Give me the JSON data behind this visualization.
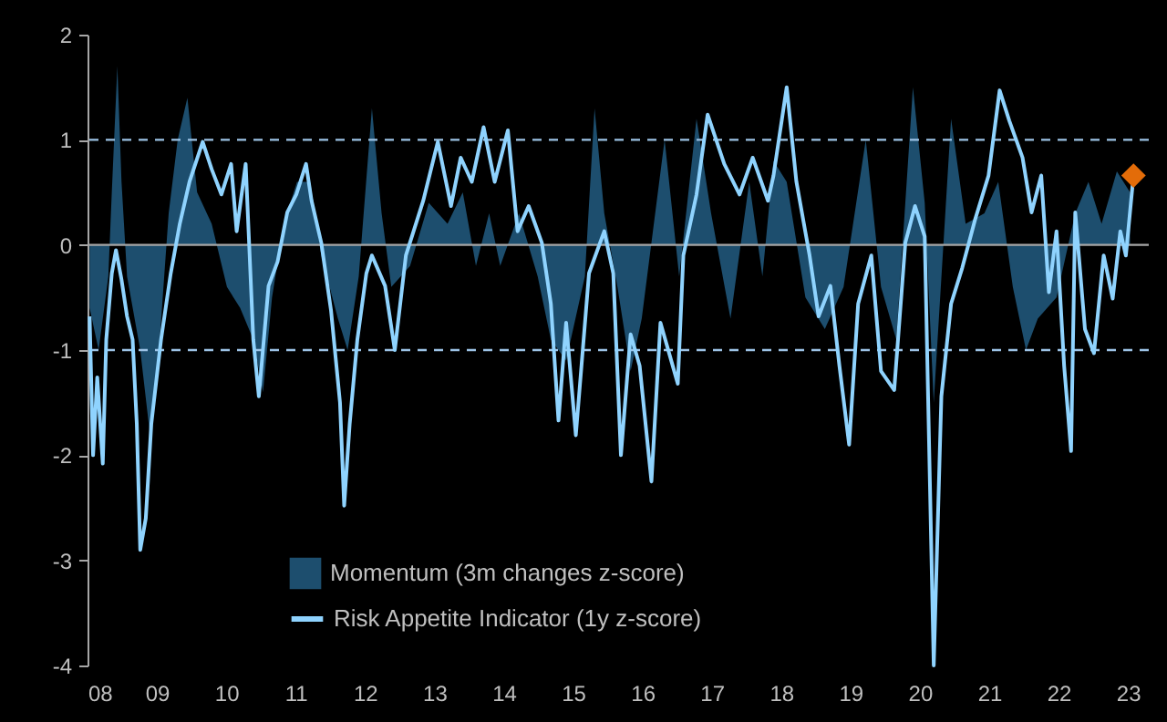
{
  "chart_data": {
    "type": "line",
    "legend": "bottom left",
    "grid": false,
    "xlim": [
      2008,
      2023.3
    ],
    "ylim": [
      -4,
      2
    ],
    "xticks": [
      {
        "value": 2008,
        "label": "08"
      },
      {
        "value": 2009,
        "label": "09"
      },
      {
        "value": 2010,
        "label": "10"
      },
      {
        "value": 2011,
        "label": "11"
      },
      {
        "value": 2012,
        "label": "12"
      },
      {
        "value": 2013,
        "label": "13"
      },
      {
        "value": 2014,
        "label": "14"
      },
      {
        "value": 2015,
        "label": "15"
      },
      {
        "value": 2016,
        "label": "16"
      },
      {
        "value": 2017,
        "label": "17"
      },
      {
        "value": 2018,
        "label": "18"
      },
      {
        "value": 2019,
        "label": "19"
      },
      {
        "value": 2020,
        "label": "20"
      },
      {
        "value": 2021,
        "label": "21"
      },
      {
        "value": 2022,
        "label": "22"
      },
      {
        "value": 2023,
        "label": "23"
      }
    ],
    "yticks": [
      -4,
      -3,
      -2,
      -1,
      0,
      1,
      2
    ],
    "ref_lines": [
      {
        "axis": "y",
        "value": 1,
        "color": "#9dc3e6",
        "line_style": "dashed"
      },
      {
        "axis": "y",
        "value": -1,
        "color": "#9dc3e6",
        "line_style": "dashed"
      },
      {
        "axis": "y",
        "value": 0,
        "color": "#a6a6a6",
        "line_style": "solid"
      }
    ],
    "series": [
      {
        "name": "Momentum (3m changes z-score)",
        "type": "area",
        "color": "#1d4e6e",
        "x": [
          2008.03,
          2008.16,
          2008.3,
          2008.35,
          2008.43,
          2008.49,
          2008.57,
          2008.76,
          2008.9,
          2009.03,
          2009.17,
          2009.3,
          2009.44,
          2009.58,
          2009.79,
          2010.01,
          2010.2,
          2010.39,
          2010.53,
          2010.66,
          2010.83,
          2011.02,
          2011.21,
          2011.37,
          2011.61,
          2011.75,
          2011.91,
          2012.1,
          2012.24,
          2012.38,
          2012.65,
          2012.92,
          2013.19,
          2013.41,
          2013.6,
          2013.79,
          2013.95,
          2014.22,
          2014.49,
          2014.68,
          2014.9,
          2015.17,
          2015.31,
          2015.45,
          2015.64,
          2015.83,
          2015.99,
          2016.32,
          2016.53,
          2016.78,
          2016.99,
          2017.27,
          2017.54,
          2017.73,
          2017.89,
          2018.08,
          2018.35,
          2018.63,
          2018.9,
          2019.22,
          2019.44,
          2019.66,
          2019.9,
          2020.07,
          2020.2,
          2020.45,
          2020.66,
          2020.93,
          2021.13,
          2021.34,
          2021.53,
          2021.7,
          2021.97,
          2022.24,
          2022.43,
          2022.62,
          2022.84,
          2023.03
        ],
        "values": [
          -0.6,
          -1.0,
          -0.3,
          0.5,
          1.7,
          0.6,
          -0.3,
          -1.0,
          -1.8,
          -1.0,
          0.3,
          1.0,
          1.4,
          0.5,
          0.2,
          -0.4,
          -0.6,
          -0.9,
          -1.4,
          -0.5,
          0.2,
          0.6,
          0.6,
          -0.1,
          -0.7,
          -1.0,
          -0.3,
          1.3,
          0.3,
          -0.4,
          -0.2,
          0.4,
          0.2,
          0.5,
          -0.2,
          0.3,
          -0.2,
          0.3,
          -0.3,
          -0.9,
          -1.1,
          -0.3,
          1.3,
          0.3,
          -0.4,
          -1.2,
          -0.7,
          1.0,
          -0.3,
          1.2,
          0.3,
          -0.7,
          0.6,
          -0.3,
          0.8,
          0.6,
          -0.5,
          -0.8,
          -0.4,
          1.0,
          -0.4,
          -0.9,
          1.5,
          0.4,
          -1.5,
          1.2,
          0.2,
          0.3,
          0.6,
          -0.4,
          -1.0,
          -0.7,
          -0.5,
          0.3,
          0.6,
          0.2,
          0.7,
          0.5
        ]
      },
      {
        "name": "Risk Appetite Indicator (1y z-score)",
        "type": "line",
        "color": "#8fd3fe",
        "x": [
          2008.03,
          2008.08,
          2008.14,
          2008.22,
          2008.27,
          2008.35,
          2008.41,
          2008.49,
          2008.57,
          2008.65,
          2008.71,
          2008.76,
          2008.84,
          2008.92,
          2009.06,
          2009.2,
          2009.33,
          2009.47,
          2009.66,
          2009.79,
          2009.93,
          2010.07,
          2010.15,
          2010.28,
          2010.39,
          2010.47,
          2010.61,
          2010.74,
          2010.88,
          2011.01,
          2011.15,
          2011.23,
          2011.37,
          2011.51,
          2011.64,
          2011.7,
          2011.78,
          2011.89,
          2012.02,
          2012.1,
          2012.29,
          2012.43,
          2012.59,
          2012.84,
          2013.05,
          2013.24,
          2013.38,
          2013.54,
          2013.71,
          2013.87,
          2014.06,
          2014.2,
          2014.36,
          2014.55,
          2014.68,
          2014.79,
          2014.9,
          2015.04,
          2015.23,
          2015.45,
          2015.58,
          2015.69,
          2015.83,
          2015.96,
          2016.13,
          2016.26,
          2016.51,
          2016.59,
          2016.78,
          2016.94,
          2017.18,
          2017.4,
          2017.59,
          2017.81,
          2017.89,
          2018.08,
          2018.22,
          2018.41,
          2018.54,
          2018.71,
          2018.84,
          2018.98,
          2019.11,
          2019.3,
          2019.44,
          2019.63,
          2019.79,
          2019.93,
          2020.07,
          2020.2,
          2020.31,
          2020.45,
          2020.61,
          2020.8,
          2020.99,
          2021.15,
          2021.29,
          2021.48,
          2021.61,
          2021.75,
          2021.86,
          2021.97,
          2022.08,
          2022.18,
          2022.24,
          2022.38,
          2022.51,
          2022.65,
          2022.78,
          2022.89,
          2022.97,
          2023.08
        ],
        "values": [
          -0.68,
          -2.0,
          -1.26,
          -2.08,
          -0.9,
          -0.27,
          -0.05,
          -0.33,
          -0.68,
          -0.9,
          -1.7,
          -2.9,
          -2.6,
          -1.7,
          -0.9,
          -0.27,
          0.2,
          0.6,
          0.98,
          0.72,
          0.48,
          0.77,
          0.13,
          0.77,
          -0.9,
          -1.44,
          -0.39,
          -0.16,
          0.31,
          0.48,
          0.77,
          0.42,
          0.02,
          -0.62,
          -1.5,
          -2.48,
          -1.7,
          -0.9,
          -0.27,
          -0.1,
          -0.39,
          -1.0,
          -0.1,
          0.42,
          0.98,
          0.37,
          0.83,
          0.6,
          1.12,
          0.6,
          1.09,
          0.13,
          0.37,
          0.02,
          -0.56,
          -1.67,
          -0.74,
          -1.81,
          -0.27,
          0.13,
          -0.27,
          -2.0,
          -0.85,
          -1.15,
          -2.25,
          -0.74,
          -1.32,
          -0.1,
          0.48,
          1.24,
          0.77,
          0.48,
          0.83,
          0.42,
          0.66,
          1.5,
          0.6,
          -0.1,
          -0.68,
          -0.39,
          -1.15,
          -1.9,
          -0.56,
          -0.1,
          -1.2,
          -1.38,
          0.02,
          0.37,
          0.08,
          -4.0,
          -1.44,
          -0.56,
          -0.22,
          0.25,
          0.66,
          1.47,
          1.18,
          0.83,
          0.31,
          0.66,
          -0.45,
          0.13,
          -1.15,
          -1.96,
          0.31,
          -0.8,
          -1.03,
          -0.1,
          -0.51,
          0.13,
          -0.1,
          0.66
        ]
      },
      {
        "type": "scatter",
        "marker": "diamond",
        "color": "#e36c09",
        "x": [
          2023.08
        ],
        "values": [
          0.66
        ]
      }
    ]
  }
}
